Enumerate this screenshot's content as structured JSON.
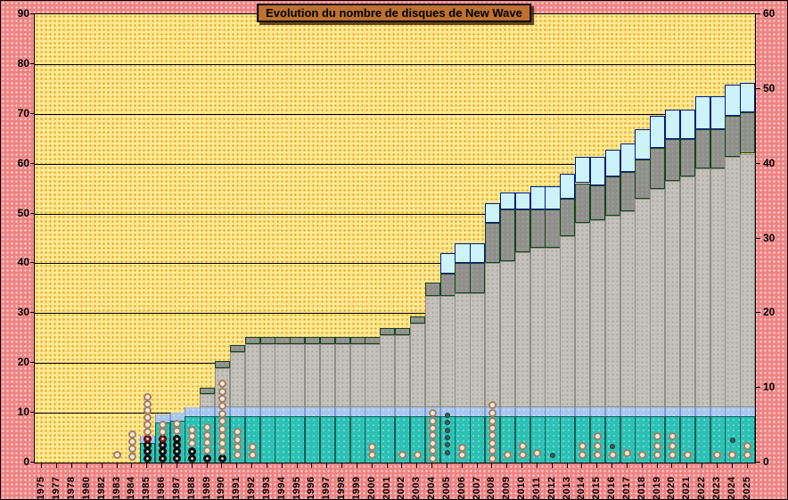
{
  "title": "Evolution  du nombre de disques de New Wave",
  "axes": {
    "left_ticks": [
      0,
      10,
      20,
      30,
      40,
      50,
      60,
      70,
      80,
      90
    ],
    "right_ticks": [
      0,
      10,
      20,
      30,
      40,
      50,
      60
    ],
    "left_max": 90,
    "right_max": 60,
    "gridline_values": [
      10,
      20,
      30,
      40,
      50,
      60,
      70,
      80
    ]
  },
  "colors": {
    "background_pink": "#ef8383",
    "plot_yellow": "#ffe993",
    "teal": "#2cc1b4",
    "periwinkle": "#a9c6ef",
    "light_gray": "#c4c2bb",
    "dark_gray": "#8f8f8b",
    "pale_cyan": "#cdf3fa",
    "title_bg": "#bd7031",
    "ring_marker": "#f3e9d8",
    "black_marker": "#141414",
    "red_marker": "#8c1616"
  },
  "chart_data": {
    "type": "bar",
    "stacked": true,
    "title": "Evolution  du nombre de disques de New Wave",
    "xlabel": "",
    "ylabel": "",
    "ylim_left": [
      0,
      90
    ],
    "ylim_right": [
      0,
      60
    ],
    "grid": "horizontal",
    "legend": "none",
    "categories": [
      "1975",
      "1977",
      "1978",
      "1980",
      "1982",
      "1983",
      "1984",
      "1985",
      "1986",
      "1987",
      "1988",
      "1989",
      "1990",
      "1991",
      "1992",
      "1993",
      "1994",
      "1995",
      "1996",
      "1997",
      "1998",
      "1999",
      "2000",
      "2001",
      "2002",
      "2003",
      "2004",
      "2005",
      "2006",
      "2007",
      "2008",
      "2009",
      "2010",
      "2011",
      "2012",
      "2013",
      "2014",
      "2015",
      "2016",
      "2017",
      "2018",
      "2019",
      "2020",
      "2021",
      "2022",
      "2023",
      "2024",
      "2025"
    ],
    "series": [
      {
        "name": "serie-turquoise",
        "color": "#2cc1b4",
        "cumulative_tops": [
          0,
          0,
          0,
          0,
          0,
          0,
          0,
          3.9,
          8.0,
          8.4,
          9.3,
          9.3,
          9.3,
          9.3,
          9.3,
          9.3,
          9.3,
          9.3,
          9.3,
          9.3,
          9.3,
          9.3,
          9.3,
          9.3,
          9.3,
          9.3,
          9.3,
          9.3,
          9.3,
          9.3,
          9.3,
          9.3,
          9.3,
          9.3,
          9.3,
          9.3,
          9.3,
          9.3,
          9.3,
          9.3,
          9.3,
          9.3,
          9.3,
          9.3,
          9.3,
          9.3,
          9.3,
          9.3
        ]
      },
      {
        "name": "serie-bleu-clair",
        "color": "#a9c6ef",
        "cumulative_tops": [
          0,
          0,
          0,
          0,
          0,
          0,
          0,
          5.4,
          9.6,
          10.0,
          11.1,
          11.1,
          11.1,
          11.1,
          11.1,
          11.1,
          11.1,
          11.1,
          11.1,
          11.1,
          11.1,
          11.1,
          11.1,
          11.1,
          11.1,
          11.1,
          11.1,
          11.1,
          11.1,
          11.1,
          11.1,
          11.1,
          11.1,
          11.1,
          11.1,
          11.1,
          11.1,
          11.1,
          11.1,
          11.1,
          11.1,
          11.1,
          11.1,
          11.1,
          11.1,
          11.1,
          11.1,
          11.1
        ]
      },
      {
        "name": "serie-gris-clair",
        "color": "#c4c2bb",
        "cumulative_tops": [
          0,
          0,
          0,
          0,
          0,
          0,
          0,
          5.4,
          9.6,
          10.0,
          11.1,
          13.8,
          19.0,
          22.2,
          23.8,
          23.8,
          23.8,
          23.8,
          23.8,
          23.8,
          23.8,
          23.8,
          23.8,
          25.6,
          25.6,
          27.9,
          33.4,
          33.4,
          34.0,
          34.0,
          40.0,
          40.5,
          42.3,
          43.2,
          43.2,
          45.4,
          48.2,
          48.6,
          49.5,
          50.5,
          53.0,
          55.0,
          56.5,
          57.5,
          59.0,
          59.0,
          61.4,
          62.0
        ]
      },
      {
        "name": "serie-gris-fonce",
        "color": "#8f8f8b",
        "cumulative_tops": [
          0,
          0,
          0,
          0,
          0,
          0,
          0,
          5.4,
          9.6,
          10.0,
          11.1,
          15.0,
          20.4,
          23.6,
          25.2,
          25.2,
          25.2,
          25.2,
          25.2,
          25.2,
          25.2,
          25.2,
          25.2,
          27.0,
          27.0,
          29.3,
          36.1,
          37.9,
          40.0,
          40.0,
          48.2,
          50.9,
          50.9,
          50.9,
          50.9,
          53.0,
          56.1,
          55.7,
          57.5,
          58.4,
          60.8,
          63.2,
          65.0,
          65.0,
          67.0,
          67.0,
          69.6,
          70.4
        ]
      },
      {
        "name": "serie-cyan-pale",
        "color": "#cdf3fa",
        "cumulative_tops": [
          0,
          0,
          0,
          0,
          0,
          0,
          0,
          5.4,
          9.6,
          10.0,
          11.1,
          15.0,
          20.4,
          23.6,
          25.2,
          25.2,
          25.2,
          25.2,
          25.2,
          25.2,
          25.2,
          25.2,
          25.2,
          27.0,
          27.0,
          29.3,
          36.1,
          42.0,
          44.1,
          44.1,
          52.1,
          54.3,
          54.3,
          55.4,
          55.4,
          57.9,
          61.4,
          61.4,
          62.9,
          64.1,
          67.0,
          69.7,
          70.9,
          70.9,
          73.6,
          73.6,
          75.9,
          76.3
        ]
      }
    ],
    "markers": [
      {
        "year": "1983",
        "type": "ring",
        "values": [
          1.5
        ]
      },
      {
        "year": "1984",
        "type": "ring",
        "values": [
          1.2,
          2.7,
          4.2,
          5.7
        ]
      },
      {
        "year": "1985",
        "type": "black",
        "values": [
          0.9,
          2.2,
          3.5
        ]
      },
      {
        "year": "1985",
        "type": "red",
        "values": [
          4.8
        ]
      },
      {
        "year": "1985",
        "type": "ring",
        "values": [
          6.2,
          7.6,
          9.0,
          10.4,
          11.8,
          13.2
        ]
      },
      {
        "year": "1986",
        "type": "black",
        "values": [
          0.9,
          2.2,
          3.5
        ]
      },
      {
        "year": "1986",
        "type": "red",
        "values": [
          4.8
        ]
      },
      {
        "year": "1986",
        "type": "ring",
        "values": [
          6.2,
          7.6
        ]
      },
      {
        "year": "1987",
        "type": "black",
        "values": [
          0.9,
          2.2,
          3.5,
          4.8
        ]
      },
      {
        "year": "1987",
        "type": "ring",
        "values": [
          6.4,
          7.8
        ]
      },
      {
        "year": "1988",
        "type": "black",
        "values": [
          0.9,
          2.2
        ]
      },
      {
        "year": "1988",
        "type": "ring",
        "values": [
          3.8,
          5.2,
          6.6
        ]
      },
      {
        "year": "1989",
        "type": "black",
        "values": [
          0.9
        ]
      },
      {
        "year": "1989",
        "type": "ring",
        "values": [
          2.5,
          4.0,
          5.5,
          7.0
        ]
      },
      {
        "year": "1990",
        "type": "black",
        "values": [
          0.9
        ]
      },
      {
        "year": "1990",
        "type": "ring",
        "values": [
          2.3,
          3.8,
          5.3,
          6.8,
          8.3,
          9.8,
          11.3,
          12.8,
          14.3,
          15.8
        ]
      },
      {
        "year": "1991",
        "type": "ring",
        "values": [
          1.6,
          3.1,
          4.6,
          6.1
        ]
      },
      {
        "year": "1992",
        "type": "ring",
        "values": [
          1.6,
          3.1
        ]
      },
      {
        "year": "2000",
        "type": "ring",
        "values": [
          1.6,
          3.1
        ]
      },
      {
        "year": "2002",
        "type": "ring",
        "values": [
          1.6
        ]
      },
      {
        "year": "2003",
        "type": "ring",
        "values": [
          1.6
        ]
      },
      {
        "year": "2004",
        "type": "ring",
        "values": [
          0.9,
          2.4,
          3.9,
          5.4,
          6.9,
          8.4,
          9.9
        ]
      },
      {
        "year": "2005",
        "type": "dark",
        "values": [
          2.0,
          3.5,
          5.0,
          6.5,
          8.0,
          9.5
        ]
      },
      {
        "year": "2006",
        "type": "ring",
        "values": [
          1.6,
          2.9
        ]
      },
      {
        "year": "2008",
        "type": "ring",
        "values": [
          0.9,
          2.4,
          3.9,
          5.4,
          6.9,
          8.4,
          10.0,
          11.5
        ]
      },
      {
        "year": "2009",
        "type": "ring",
        "values": [
          1.6
        ]
      },
      {
        "year": "2010",
        "type": "ring",
        "values": [
          1.6,
          3.4
        ]
      },
      {
        "year": "2011",
        "type": "ring",
        "values": [
          1.8
        ]
      },
      {
        "year": "2012",
        "type": "dark",
        "values": [
          1.5
        ]
      },
      {
        "year": "2014",
        "type": "ring",
        "values": [
          1.6,
          3.4
        ]
      },
      {
        "year": "2015",
        "type": "ring",
        "values": [
          1.6,
          3.4,
          5.2
        ]
      },
      {
        "year": "2016",
        "type": "ring",
        "values": [
          1.6
        ]
      },
      {
        "year": "2016",
        "type": "dark",
        "values": [
          3.2
        ]
      },
      {
        "year": "2017",
        "type": "ring",
        "values": [
          1.8
        ]
      },
      {
        "year": "2018",
        "type": "ring",
        "values": [
          1.6
        ]
      },
      {
        "year": "2019",
        "type": "ring",
        "values": [
          1.6,
          3.4,
          5.2
        ]
      },
      {
        "year": "2020",
        "type": "ring",
        "values": [
          1.6,
          3.4,
          5.2
        ]
      },
      {
        "year": "2021",
        "type": "ring",
        "values": [
          1.6
        ]
      },
      {
        "year": "2023",
        "type": "ring",
        "values": [
          1.6
        ]
      },
      {
        "year": "2024",
        "type": "ring",
        "values": [
          1.6
        ]
      },
      {
        "year": "2024",
        "type": "dark",
        "values": [
          4.5
        ]
      },
      {
        "year": "2025",
        "type": "ring",
        "values": [
          1.6,
          3.4
        ]
      }
    ]
  }
}
